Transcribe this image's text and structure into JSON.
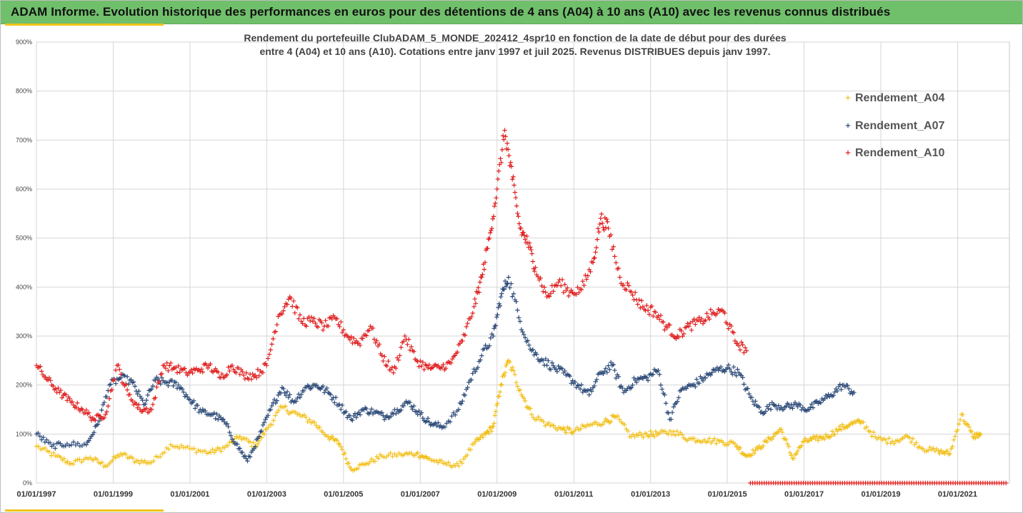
{
  "header": {
    "title": "ADAM Informe. Evolution historique des performances en euros pour des détentions de 4 ans (A04) à 10 ans (A10) avec les revenus connus distribués"
  },
  "chart_data": {
    "type": "scatter",
    "title_line1": "Rendement du portefeuille ClubADAM_5_MONDE_202412_4spr10  en fonction de la date de début pour des durées",
    "title_line2": "entre 4 (A04) et 10 ans (A10). Cotations entre janv 1997 et juil 2025. Revenus DISTRIBUES depuis janv 1997.",
    "xlabel": "",
    "ylabel": "",
    "ylim": [
      0,
      900
    ],
    "y_ticks": [
      "0%",
      "100%",
      "200%",
      "300%",
      "400%",
      "500%",
      "600%",
      "700%",
      "800%",
      "900%"
    ],
    "x_ticks": [
      "01/01/1997",
      "01/01/1999",
      "01/01/2001",
      "01/01/2003",
      "01/01/2005",
      "01/01/2007",
      "01/01/2009",
      "01/01/2011",
      "01/01/2013",
      "01/01/2015",
      "01/01/2017",
      "01/01/2019",
      "01/01/2021"
    ],
    "x_range": [
      1997.0,
      2022.35
    ],
    "grid": "horizontal",
    "legend_position": "top-right",
    "marker": "+",
    "series": [
      {
        "name": "Rendement_A04",
        "color": "#f2c01a",
        "x": [
          1997.0,
          1997.5,
          1997.9,
          1998.4,
          1998.8,
          1999.2,
          1999.6,
          2000.0,
          2000.5,
          2001.0,
          2001.5,
          2001.9,
          2002.3,
          2002.7,
          2003.0,
          2003.4,
          2003.8,
          2004.2,
          2004.6,
          2004.9,
          2005.2,
          2005.6,
          2006.0,
          2006.5,
          2006.9,
          2007.2,
          2007.6,
          2008.0,
          2008.4,
          2008.7,
          2008.9,
          2009.1,
          2009.3,
          2009.6,
          2009.9,
          2010.3,
          2010.7,
          2011.0,
          2011.4,
          2011.8,
          2012.1,
          2012.5,
          2012.9,
          2013.2,
          2013.6,
          2014.0,
          2014.4,
          2014.8,
          2015.2,
          2015.5,
          2015.8,
          2016.1,
          2016.4,
          2016.7,
          2017.0,
          2017.3,
          2017.6,
          2017.9,
          2018.2,
          2018.5,
          2018.9,
          2019.3,
          2019.7,
          2020.1,
          2020.5,
          2020.8,
          2021.1,
          2021.4,
          2021.6
        ],
        "y": [
          75,
          55,
          40,
          52,
          35,
          60,
          45,
          42,
          78,
          70,
          62,
          72,
          95,
          75,
          110,
          155,
          140,
          125,
          95,
          80,
          28,
          40,
          55,
          58,
          60,
          50,
          40,
          35,
          80,
          100,
          115,
          200,
          250,
          190,
          140,
          120,
          110,
          105,
          118,
          125,
          135,
          95,
          100,
          100,
          105,
          90,
          88,
          85,
          80,
          55,
          70,
          90,
          110,
          50,
          85,
          90,
          95,
          110,
          120,
          125,
          90,
          85,
          95,
          70,
          65,
          60,
          140,
          95,
          100
        ]
      },
      {
        "name": "Rendement_A07",
        "color": "#2c4a78",
        "x": [
          1997.0,
          1997.4,
          1997.8,
          1998.3,
          1998.6,
          1998.9,
          1999.2,
          1999.5,
          1999.8,
          2000.1,
          2000.4,
          2000.7,
          2001.0,
          2001.3,
          2001.6,
          2001.9,
          2002.2,
          2002.5,
          2002.8,
          2003.1,
          2003.4,
          2003.7,
          2004.0,
          2004.3,
          2004.6,
          2004.9,
          2005.2,
          2005.5,
          2005.8,
          2006.1,
          2006.4,
          2006.7,
          2007.0,
          2007.3,
          2007.6,
          2008.0,
          2008.3,
          2008.6,
          2008.9,
          2009.1,
          2009.3,
          2009.6,
          2009.9,
          2010.2,
          2010.5,
          2010.8,
          2011.1,
          2011.4,
          2011.7,
          2012.0,
          2012.3,
          2012.6,
          2012.9,
          2013.2,
          2013.5,
          2013.8,
          2014.1,
          2014.4,
          2014.7,
          2015.0,
          2015.3,
          2015.6,
          2015.9,
          2016.2,
          2016.5,
          2016.8,
          2017.1,
          2017.4,
          2017.7,
          2018.0,
          2018.3
        ],
        "y": [
          100,
          75,
          80,
          78,
          120,
          200,
          215,
          205,
          160,
          210,
          205,
          200,
          170,
          145,
          140,
          125,
          80,
          45,
          95,
          150,
          195,
          165,
          195,
          200,
          185,
          160,
          130,
          150,
          145,
          135,
          150,
          165,
          140,
          120,
          115,
          150,
          210,
          260,
          300,
          380,
          420,
          330,
          270,
          250,
          235,
          220,
          200,
          180,
          225,
          240,
          185,
          210,
          215,
          230,
          130,
          190,
          200,
          215,
          230,
          235,
          225,
          175,
          145,
          160,
          155,
          160,
          150,
          165,
          180,
          200,
          185
        ]
      },
      {
        "name": "Rendement_A10",
        "color": "#e02020",
        "x": [
          1997.0,
          1997.3,
          1997.6,
          1997.9,
          1998.2,
          1998.5,
          1998.8,
          1999.1,
          1999.4,
          1999.7,
          2000.0,
          2000.3,
          2000.6,
          2000.9,
          2001.2,
          2001.5,
          2001.8,
          2002.1,
          2002.4,
          2002.7,
          2003.0,
          2003.3,
          2003.6,
          2003.9,
          2004.2,
          2004.5,
          2004.8,
          2005.1,
          2005.4,
          2005.7,
          2006.0,
          2006.3,
          2006.6,
          2006.9,
          2007.2,
          2007.5,
          2007.8,
          2008.1,
          2008.4,
          2008.6,
          2008.8,
          2009.0,
          2009.2,
          2009.4,
          2009.6,
          2009.8,
          2010.0,
          2010.3,
          2010.6,
          2010.9,
          2011.2,
          2011.5,
          2011.7,
          2011.9,
          2012.2,
          2012.5,
          2012.8,
          2013.1,
          2013.4,
          2013.7,
          2014.0,
          2014.3,
          2014.6,
          2014.9,
          2015.2,
          2015.5
        ],
        "y": [
          240,
          210,
          185,
          165,
          150,
          130,
          140,
          240,
          180,
          150,
          150,
          240,
          235,
          225,
          230,
          240,
          215,
          240,
          220,
          220,
          240,
          340,
          380,
          330,
          330,
          320,
          335,
          300,
          285,
          320,
          260,
          225,
          300,
          250,
          235,
          235,
          245,
          290,
          360,
          420,
          500,
          600,
          720,
          620,
          520,
          490,
          440,
          380,
          410,
          390,
          395,
          450,
          540,
          520,
          420,
          390,
          360,
          350,
          320,
          300,
          320,
          330,
          345,
          350,
          290,
          270
        ]
      }
    ],
    "flat_series_note_x_range": [
      2015.6,
      2022.3
    ]
  }
}
